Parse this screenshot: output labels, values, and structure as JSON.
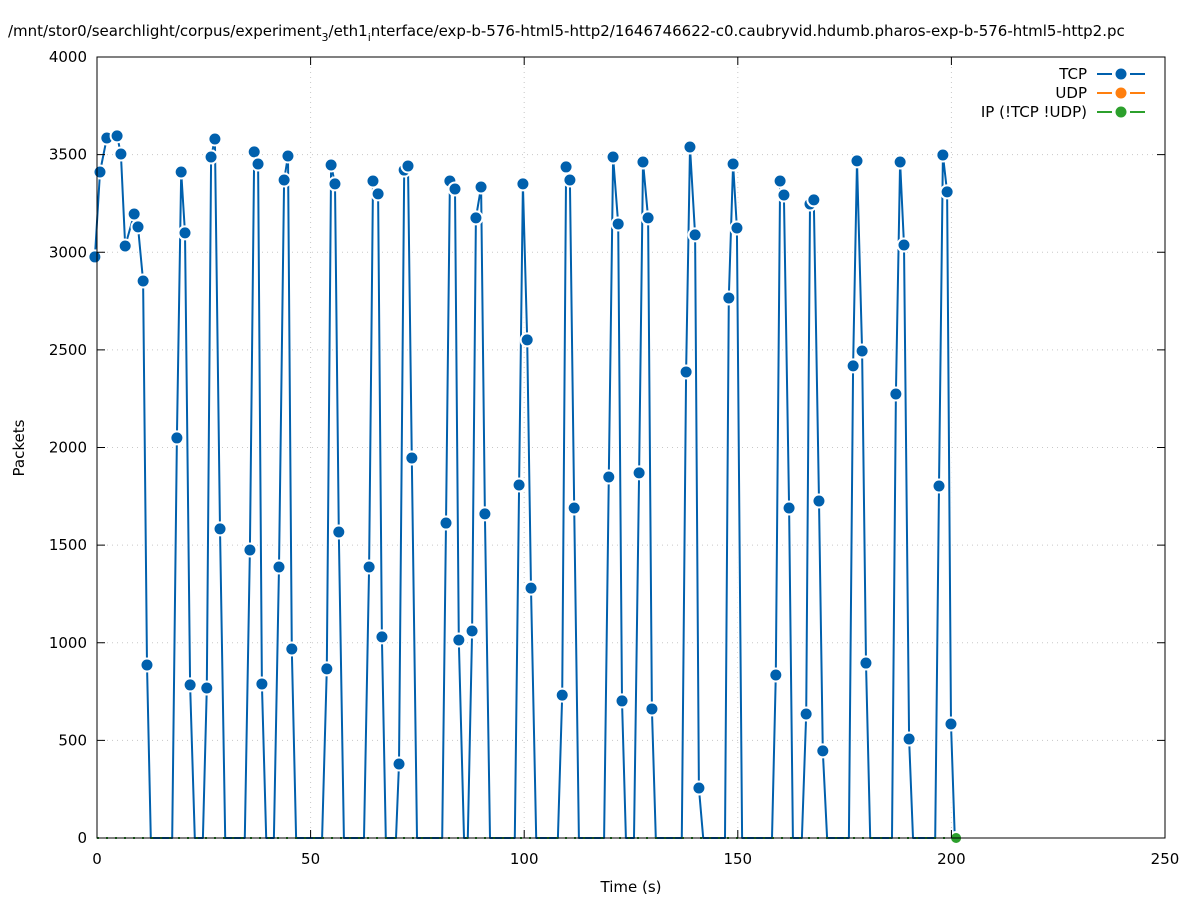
{
  "chart_data": {
    "type": "line",
    "title_segments": [
      "/mnt/stor0/searchlight/corpus/experiment",
      "3",
      "/eth1",
      "i",
      "nterface/exp-b-576-html5-http2/1646746622-c0.caubryvid.hdumb.pharos-exp-b-576-html5-http2.pc"
    ],
    "xlabel": "Time (s)",
    "ylabel": "Packets",
    "xlim": [
      0,
      250
    ],
    "ylim": [
      0,
      4000
    ],
    "xticks": [
      "0",
      "50",
      "100",
      "150",
      "200",
      "250"
    ],
    "yticks": [
      "0",
      "500",
      "1000",
      "1500",
      "2000",
      "2500",
      "3000",
      "3500",
      "4000"
    ],
    "grid": true,
    "legend_position": "top-right",
    "series": [
      {
        "name": "TCP",
        "color": "#0060ad",
        "points": [
          [
            -0.5,
            2976
          ],
          [
            0.7,
            3411
          ],
          [
            2.3,
            3585
          ],
          [
            4.7,
            3596
          ],
          [
            5.6,
            3503
          ],
          [
            6.6,
            3032
          ],
          [
            8.7,
            3196
          ],
          [
            9.6,
            3130
          ],
          [
            10.8,
            2853
          ],
          [
            11.7,
            886
          ],
          [
            12.6,
            0
          ],
          [
            17.6,
            0
          ],
          [
            18.7,
            2049
          ],
          [
            19.7,
            3411
          ],
          [
            20.6,
            3099
          ],
          [
            21.8,
            784
          ],
          [
            22.9,
            0
          ],
          [
            24.8,
            0
          ],
          [
            25.7,
            768
          ],
          [
            26.7,
            3488
          ],
          [
            27.6,
            3580
          ],
          [
            28.8,
            1583
          ],
          [
            30.0,
            0
          ],
          [
            34.6,
            0
          ],
          [
            35.8,
            1475
          ],
          [
            36.8,
            3514
          ],
          [
            37.7,
            3452
          ],
          [
            38.6,
            789
          ],
          [
            39.6,
            0
          ],
          [
            41.4,
            0
          ],
          [
            42.6,
            1388
          ],
          [
            43.8,
            3370
          ],
          [
            44.7,
            3493
          ],
          [
            45.6,
            968
          ],
          [
            46.6,
            0
          ],
          [
            52.7,
            0
          ],
          [
            53.8,
            866
          ],
          [
            54.8,
            3447
          ],
          [
            55.7,
            3350
          ],
          [
            56.6,
            1567
          ],
          [
            57.8,
            0
          ],
          [
            62.5,
            0
          ],
          [
            63.7,
            1388
          ],
          [
            64.6,
            3365
          ],
          [
            65.8,
            3299
          ],
          [
            66.7,
            1030
          ],
          [
            67.6,
            0
          ],
          [
            70.0,
            0
          ],
          [
            70.7,
            379
          ],
          [
            71.9,
            3421
          ],
          [
            72.8,
            3442
          ],
          [
            73.7,
            1946
          ],
          [
            74.9,
            0
          ],
          [
            80.8,
            0
          ],
          [
            81.7,
            1613
          ],
          [
            82.6,
            3365
          ],
          [
            83.8,
            3324
          ],
          [
            84.7,
            1014
          ],
          [
            85.9,
            0
          ],
          [
            86.8,
            0
          ],
          [
            87.8,
            1060
          ],
          [
            88.7,
            3176
          ],
          [
            89.9,
            3334
          ],
          [
            90.8,
            1660
          ],
          [
            92.0,
            0
          ],
          [
            97.8,
            0
          ],
          [
            98.8,
            1808
          ],
          [
            99.7,
            3350
          ],
          [
            100.7,
            2551
          ],
          [
            101.6,
            1280
          ],
          [
            102.8,
            0
          ],
          [
            107.9,
            0
          ],
          [
            108.9,
            732
          ],
          [
            109.8,
            3437
          ],
          [
            110.7,
            3370
          ],
          [
            111.7,
            1690
          ],
          [
            112.8,
            0
          ],
          [
            118.7,
            0
          ],
          [
            119.8,
            1849
          ],
          [
            120.8,
            3488
          ],
          [
            122.0,
            3145
          ],
          [
            122.9,
            702
          ],
          [
            123.8,
            0
          ],
          [
            125.7,
            0
          ],
          [
            126.9,
            1870
          ],
          [
            127.8,
            3462
          ],
          [
            129.0,
            3176
          ],
          [
            129.9,
            661
          ],
          [
            130.8,
            0
          ],
          [
            136.9,
            0
          ],
          [
            137.9,
            2387
          ],
          [
            138.8,
            3539
          ],
          [
            140.0,
            3089
          ],
          [
            140.9,
            256
          ],
          [
            141.9,
            0
          ],
          [
            147.0,
            0
          ],
          [
            147.9,
            2766
          ],
          [
            148.9,
            3452
          ],
          [
            149.8,
            3124
          ],
          [
            151.0,
            0
          ],
          [
            158.0,
            0
          ],
          [
            158.9,
            835
          ],
          [
            159.9,
            3365
          ],
          [
            160.8,
            3293
          ],
          [
            162.0,
            1690
          ],
          [
            162.9,
            0
          ],
          [
            165.0,
            0
          ],
          [
            166.0,
            635
          ],
          [
            166.9,
            3247
          ],
          [
            167.8,
            3268
          ],
          [
            169.0,
            1726
          ],
          [
            169.9,
            446
          ],
          [
            170.9,
            0
          ],
          [
            176.0,
            0
          ],
          [
            177.0,
            2418
          ],
          [
            177.9,
            3468
          ],
          [
            179.1,
            2494
          ],
          [
            180.0,
            896
          ],
          [
            181.0,
            0
          ],
          [
            186.1,
            0
          ],
          [
            187.0,
            2274
          ],
          [
            188.0,
            3462
          ],
          [
            188.9,
            3037
          ],
          [
            190.1,
            507
          ],
          [
            191.0,
            0
          ],
          [
            196.2,
            0
          ],
          [
            197.1,
            1803
          ],
          [
            198.0,
            3498
          ],
          [
            199.0,
            3309
          ],
          [
            199.9,
            584
          ],
          [
            200.8,
            0
          ]
        ]
      },
      {
        "name": "UDP",
        "color": "#ff7f0e",
        "points": []
      },
      {
        "name": "IP (!TCP  !UDP)",
        "color": "#2ca02c",
        "points": [
          [
            0,
            0
          ],
          [
            201.1,
            0
          ]
        ]
      }
    ]
  }
}
